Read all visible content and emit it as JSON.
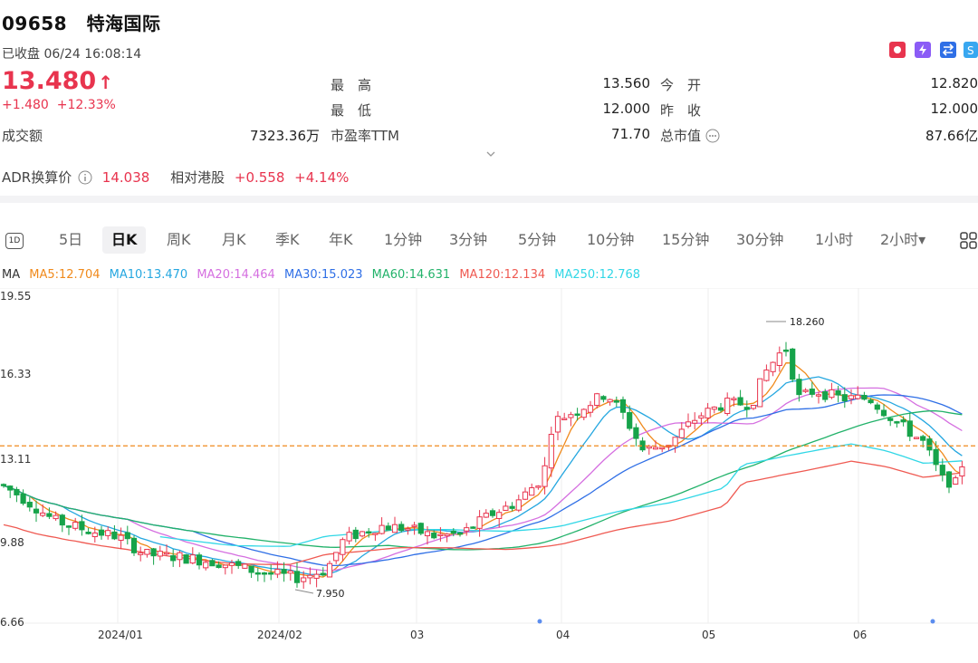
{
  "header": {
    "code": "09658",
    "name": "特海国际",
    "status": "已收盘 06/24 16:08:14",
    "price": "13.480",
    "price_arrow": "↑",
    "change": "+1.480",
    "change_pct": "+12.33%",
    "colors": {
      "up": "#e8344e",
      "down": "#16a34a"
    }
  },
  "quote": {
    "turnover_label": "成交额",
    "turnover_value": "7323.36万",
    "high_label": "最　高",
    "high_value": "13.560",
    "low_label": "最　低",
    "low_value": "12.000",
    "pe_label": "市盈率TTM",
    "pe_value": "71.70",
    "open_label": "今　开",
    "open_value": "12.820",
    "prev_close_label": "昨　收",
    "prev_close_value": "12.000",
    "mcap_label": "总市值",
    "mcap_value": "87.66亿",
    "expand_icon": "chevron-down-icon"
  },
  "adr": {
    "label": "ADR换算价",
    "value": "14.038",
    "rel_label": "相对港股",
    "rel_change": "+0.558",
    "rel_pct": "+4.14%"
  },
  "tabs": {
    "items": [
      "5日",
      "日K",
      "周K",
      "月K",
      "季K",
      "年K",
      "1分钟",
      "3分钟",
      "5分钟",
      "10分钟",
      "15分钟",
      "30分钟",
      "1小时",
      "2小时▾"
    ],
    "active": "日K",
    "icon_1d": "1D"
  },
  "ma": {
    "label": "MA",
    "items": [
      {
        "text": "MA5:12.704",
        "color": "#f08a1c"
      },
      {
        "text": "MA10:13.470",
        "color": "#25a7e0"
      },
      {
        "text": "MA20:14.464",
        "color": "#d56fe0"
      },
      {
        "text": "MA30:15.023",
        "color": "#2f6fe6"
      },
      {
        "text": "MA60:14.631",
        "color": "#22b26a"
      },
      {
        "text": "MA120:12.134",
        "color": "#ef5a52"
      },
      {
        "text": "MA250:12.768",
        "color": "#31d7e6"
      }
    ]
  },
  "chart_data": {
    "type": "candlestick",
    "y_ticks": [
      "19.55",
      "16.33",
      "13.11",
      "9.88",
      "6.66"
    ],
    "x_ticks": [
      "2024/01",
      "2024/02",
      "03",
      "04",
      "05",
      "06"
    ],
    "ylim": [
      6.66,
      19.55
    ],
    "annotations": [
      "18.260",
      "7.950"
    ],
    "current_line": 13.48
  }
}
